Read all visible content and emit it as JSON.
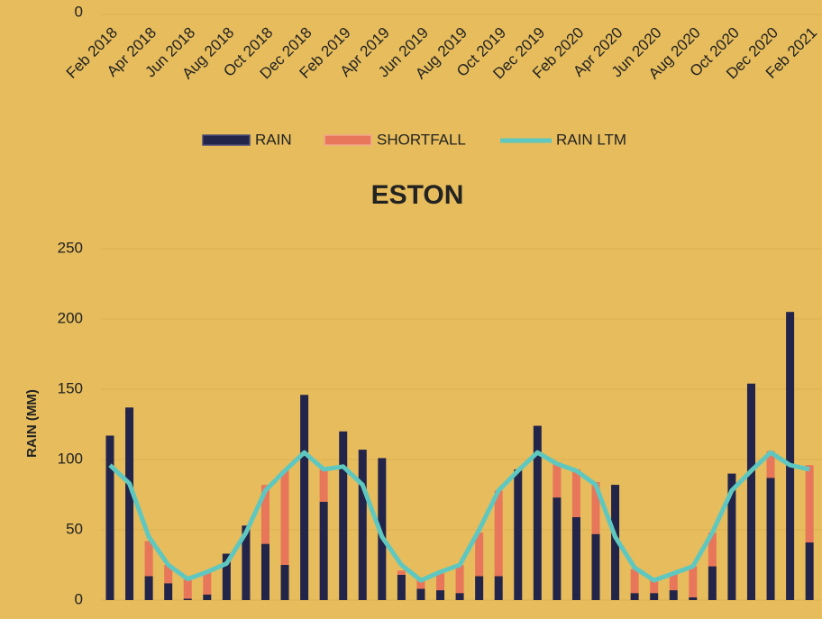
{
  "chart_data": [
    {
      "type": "bar",
      "categories": [
        "Feb 2018",
        null,
        "Apr 2018",
        null,
        "Jun 2018",
        null,
        "Aug 2018",
        null,
        "Oct 2018",
        null,
        "Dec 2018",
        null,
        "Feb 2019",
        null,
        "Apr 2019",
        null,
        "Jun 2019",
        null,
        "Aug 2019",
        null,
        "Oct 2019",
        null,
        "Dec 2019",
        null,
        "Feb 2020",
        null,
        "Apr 2020",
        null,
        "Jun 2020",
        null,
        "Aug 2020",
        null,
        "Oct 2020",
        null,
        "Dec 2020",
        null,
        "Feb 2021"
      ],
      "yticks": [
        0
      ],
      "series": [
        {
          "name": "RAIN",
          "color": "#23244a"
        },
        {
          "name": "SHORTFALL",
          "color": "#e8765a"
        },
        {
          "name": "RAIN LTM",
          "color": "#5ec8c0"
        }
      ]
    },
    {
      "type": "bar",
      "title": "ESTON",
      "y_label": "RAIN (MM)",
      "ylim": [
        0,
        250
      ],
      "yticks": [
        0,
        50,
        100,
        150,
        200,
        250
      ],
      "grid": true,
      "stacked": true,
      "series": [
        {
          "type": "bar",
          "color": "#23244a",
          "values": [
            117,
            137,
            17,
            12,
            1,
            4,
            33,
            53,
            40,
            25,
            146,
            70,
            120,
            107,
            101,
            18,
            8,
            7,
            5,
            17,
            17,
            93,
            124,
            73,
            59,
            47,
            82,
            5,
            5,
            7,
            2,
            24,
            90,
            154,
            87,
            205,
            41
          ]
        },
        {
          "type": "bar",
          "color": "#e8765a",
          "values": [
            0,
            0,
            25,
            13,
            14,
            16,
            0,
            0,
            42,
            67,
            0,
            23,
            0,
            0,
            0,
            3,
            6,
            12,
            20,
            31,
            61,
            0,
            0,
            25,
            34,
            37,
            0,
            17,
            9,
            12,
            22,
            24,
            0,
            0,
            19,
            0,
            55
          ]
        },
        {
          "type": "line",
          "color": "#5ec8c0",
          "values": [
            96,
            83,
            45,
            25,
            15,
            20,
            26,
            48,
            78,
            92,
            105,
            93,
            95,
            82,
            45,
            25,
            14,
            20,
            25,
            50,
            78,
            92,
            105,
            97,
            92,
            82,
            45,
            23,
            14,
            19,
            24,
            48,
            78,
            92,
            105,
            96,
            93
          ]
        }
      ]
    }
  ]
}
